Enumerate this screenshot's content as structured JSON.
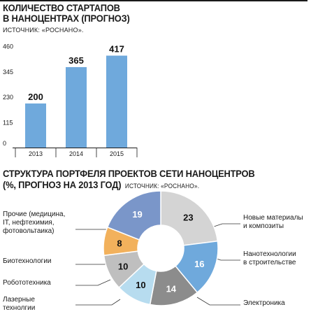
{
  "bar_title_line1": "КОЛИЧЕСТВО СТАРТАПОВ",
  "bar_title_line2": "В НАНОЦЕНТРАХ (ПРОГНОЗ)",
  "bar_source": "ИСТОЧНИК: «РОСНАНО».",
  "donut_title_line1": "СТРУКТУРА  ПОРТФЕЛЯ ПРОЕКТОВ СЕТИ НАНОЦЕНТРОВ",
  "donut_title_line2": "(%, ПРОГНОЗ НА 2013 ГОД)",
  "donut_source": "ИСТОЧНИК: «РОСНАНО».",
  "colors": {
    "bar": "#6fa9dc",
    "slice_new_materials": "#d4d4d4",
    "slice_construction": "#6fa9dc",
    "slice_electronics": "#8c8c8c",
    "slice_laser": "#b7dcef",
    "slice_robotics": "#bfbfbf",
    "slice_bio": "#f2b15c",
    "slice_other": "#7a96c9"
  },
  "chart_data": [
    {
      "type": "bar",
      "title": "КОЛИЧЕСТВО СТАРТАПОВ В НАНОЦЕНТРАХ (ПРОГНОЗ)",
      "categories": [
        "2013",
        "2014",
        "2015"
      ],
      "values": [
        200,
        365,
        417
      ],
      "yticks": [
        "0",
        "115",
        "230",
        "345",
        "460"
      ],
      "ylim": [
        0,
        460
      ],
      "grid": false
    },
    {
      "type": "pie",
      "title": "СТРУКТУРА  ПОРТФЕЛЯ ПРОЕКТОВ СЕТИ НАНОЦЕНТРОВ (%, ПРОГНОЗ НА 2013 ГОД)",
      "slices": [
        {
          "label": "Новые материалы и композиты",
          "value": 23,
          "color_key": "slice_new_materials"
        },
        {
          "label": "Нанотехнологии в строительстве",
          "value": 16,
          "color_key": "slice_construction"
        },
        {
          "label": "Электроника",
          "value": 14,
          "color_key": "slice_electronics"
        },
        {
          "label": "Лазерные технолгии",
          "value": 10,
          "color_key": "slice_laser"
        },
        {
          "label": "Робототехника",
          "value": 10,
          "color_key": "slice_robotics"
        },
        {
          "label": "Биотехнологии",
          "value": 8,
          "color_key": "slice_bio"
        },
        {
          "label": "Прочие (медицина, IT, нефтехимия, фотовольтаика)",
          "value": 19,
          "color_key": "slice_other"
        }
      ],
      "label_lines": {
        "new_materials": [
          "Новые материалы",
          "и композиты"
        ],
        "construction": [
          "Нанотехнологии",
          "в строительстве"
        ],
        "electronics": [
          "Электроника"
        ],
        "laser": [
          "Лазерные",
          "технолгии"
        ],
        "robotics": [
          "Робототехника"
        ],
        "bio": [
          "Биотехнологии"
        ],
        "other": [
          "Прочие (медицина,",
          "IT, нефтехимия,",
          "фотовольтаика)"
        ]
      }
    }
  ]
}
